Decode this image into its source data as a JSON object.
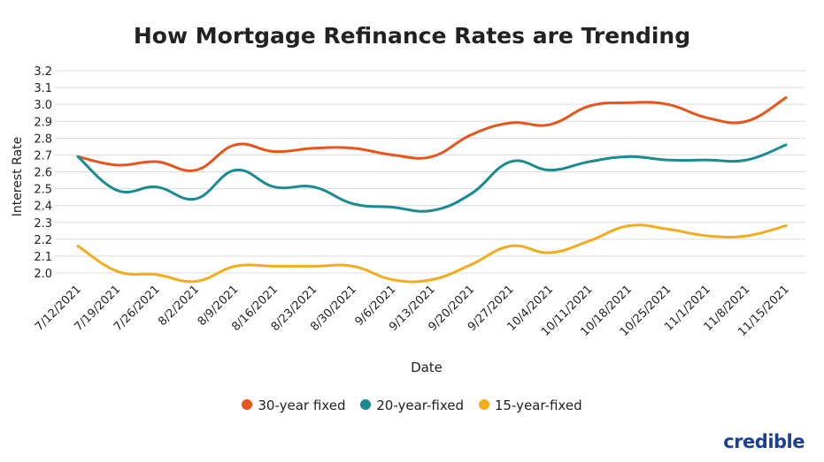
{
  "chart_data": {
    "type": "line",
    "title": "How Mortgage Refinance Rates are Trending",
    "xlabel": "Date",
    "ylabel": "Interest Rate",
    "ylim": [
      1.95,
      3.2
    ],
    "yticks": [
      3.2,
      3.1,
      3.0,
      2.9,
      2.8,
      2.7,
      2.6,
      2.5,
      2.4,
      2.3,
      2.2,
      2.1,
      2.0
    ],
    "ytick_labels": [
      "3.2",
      "3.1",
      "3.0",
      "2.9",
      "2.8",
      "2.7",
      "2.6",
      "2.5",
      "2.4",
      "2.3",
      "2.2",
      "2.1",
      "2.0"
    ],
    "grid": true,
    "legend_position": "bottom",
    "categories": [
      "7/12/2021",
      "7/19/2021",
      "7/26/2021",
      "8/2/2021",
      "8/9/2021",
      "8/16/2021",
      "8/23/2021",
      "8/30/2021",
      "9/6/2021",
      "9/13/2021",
      "9/20/2021",
      "9/27/2021",
      "10/4/2021",
      "10/11/2021",
      "10/18/2021",
      "10/25/2021",
      "11/1/2021",
      "11/8/2021",
      "11/15/2021"
    ],
    "series": [
      {
        "name": "30-year fixed",
        "color": "#e8541a",
        "values": [
          2.69,
          2.64,
          2.66,
          2.61,
          2.76,
          2.72,
          2.74,
          2.74,
          2.7,
          2.69,
          2.82,
          2.89,
          2.88,
          2.99,
          3.01,
          3.0,
          2.92,
          2.9,
          3.04
        ]
      },
      {
        "name": "20-year-fixed",
        "color": "#1a8b91",
        "values": [
          2.69,
          2.49,
          2.51,
          2.44,
          2.61,
          2.51,
          2.51,
          2.41,
          2.39,
          2.37,
          2.47,
          2.66,
          2.61,
          2.66,
          2.69,
          2.67,
          2.67,
          2.67,
          2.76
        ]
      },
      {
        "name": "15-year-fixed",
        "color": "#f5ab1b",
        "values": [
          2.16,
          2.01,
          1.99,
          1.95,
          2.04,
          2.04,
          2.04,
          2.04,
          1.96,
          1.96,
          2.05,
          2.16,
          2.12,
          2.19,
          2.28,
          2.26,
          2.22,
          2.22,
          2.28
        ]
      }
    ]
  },
  "brand": {
    "name": "credible"
  }
}
